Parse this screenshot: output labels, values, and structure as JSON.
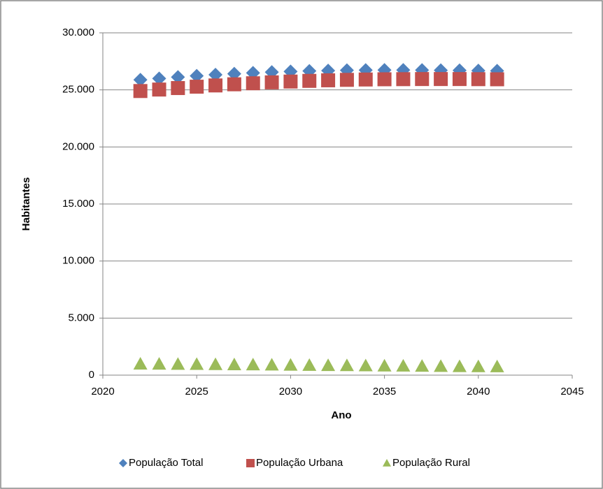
{
  "chart_data": {
    "type": "scatter",
    "x_label": "Ano",
    "y_label": "Habitantes",
    "x": [
      2022,
      2023,
      2024,
      2025,
      2026,
      2027,
      2028,
      2029,
      2030,
      2031,
      2032,
      2033,
      2034,
      2035,
      2036,
      2037,
      2038,
      2039,
      2040,
      2041
    ],
    "series": [
      {
        "name": "População Total",
        "color": "#4f81bd",
        "marker": "diamond",
        "values": [
          25880,
          26000,
          26120,
          26230,
          26325,
          26410,
          26490,
          26555,
          26610,
          26655,
          26690,
          26720,
          26735,
          26740,
          26740,
          26735,
          26720,
          26710,
          26690,
          26670
        ]
      },
      {
        "name": "População Urbana",
        "color": "#c0504d",
        "marker": "square",
        "values": [
          24900,
          25030,
          25160,
          25280,
          25390,
          25490,
          25580,
          25660,
          25730,
          25790,
          25840,
          25880,
          25910,
          25930,
          25940,
          25950,
          25950,
          25950,
          25940,
          25930
        ]
      },
      {
        "name": "População Rural",
        "color": "#9bbb59",
        "marker": "triangle",
        "values": [
          980,
          970,
          960,
          950,
          935,
          920,
          910,
          895,
          880,
          865,
          850,
          840,
          825,
          810,
          800,
          785,
          770,
          760,
          750,
          740
        ]
      }
    ],
    "xlim": [
      2020,
      2045
    ],
    "xticks": [
      2020,
      2025,
      2030,
      2035,
      2040,
      2045
    ],
    "ylim": [
      0,
      30000
    ],
    "yticks": [
      0,
      {
        "value": 5000,
        "label": "5.000"
      },
      {
        "value": 10000,
        "label": "10.000"
      },
      {
        "value": 15000,
        "label": "15.000"
      },
      {
        "value": 20000,
        "label": "20.000"
      },
      {
        "value": 25000,
        "label": "25.000"
      },
      {
        "value": 30000,
        "label": "30.000"
      }
    ],
    "grid": true,
    "legend": "bottom"
  }
}
